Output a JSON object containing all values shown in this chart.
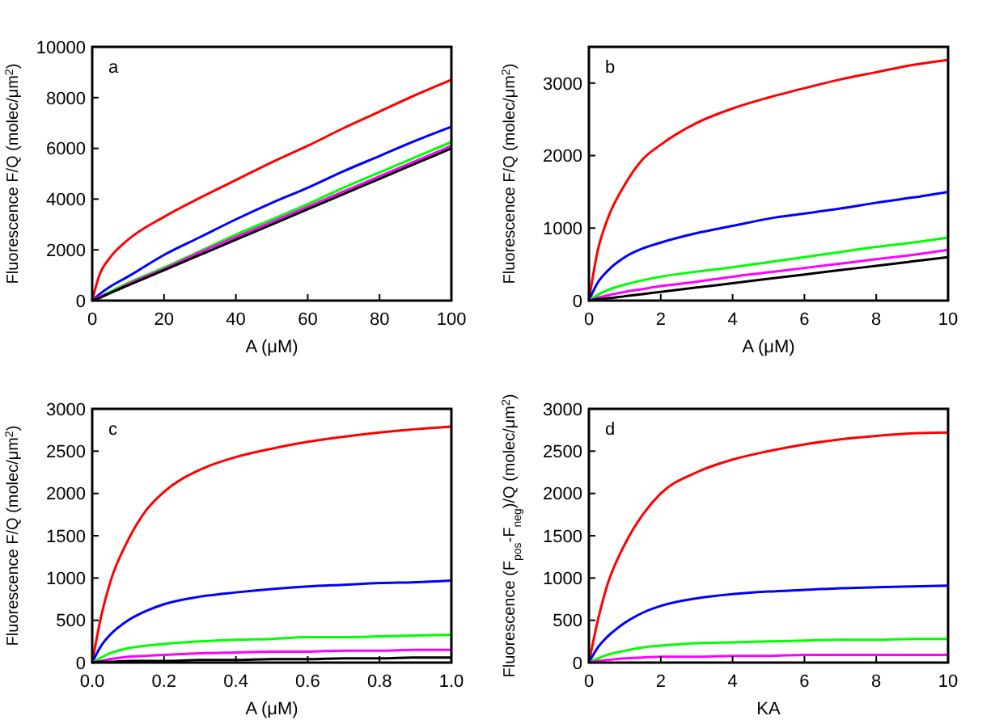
{
  "chart_data": [
    {
      "type": "line",
      "annotations": [
        "a"
      ],
      "xlabel": "A (μM)",
      "ylabel": "Fluorescence F/Q (molec/μm$^{2}$)",
      "x": [
        0,
        2,
        5,
        10,
        20,
        30,
        40,
        50,
        60,
        70,
        80,
        90,
        100
      ],
      "xlim": [
        0,
        100
      ],
      "xticks": [
        0,
        20,
        40,
        60,
        80,
        100
      ],
      "ylim": [
        0,
        10000
      ],
      "yticks": [
        0,
        2000,
        4000,
        6000,
        8000,
        10000
      ],
      "marker": "none",
      "series": [
        {
          "color": "#ff0000",
          "values": [
            0,
            1000,
            1700,
            2400,
            3300,
            4050,
            4750,
            5450,
            6100,
            6800,
            7450,
            8100,
            8700
          ]
        },
        {
          "color": "#0000ff",
          "values": [
            0,
            250,
            550,
            950,
            1800,
            2500,
            3200,
            3850,
            4450,
            5100,
            5700,
            6300,
            6850
          ]
        },
        {
          "color": "#00ff00",
          "values": [
            0,
            150,
            350,
            700,
            1300,
            1950,
            2600,
            3200,
            3800,
            4450,
            5050,
            5650,
            6250
          ]
        },
        {
          "color": "#ff00ff",
          "values": [
            0,
            150,
            300,
            650,
            1250,
            1900,
            2500,
            3100,
            3700,
            4300,
            4900,
            5500,
            6100
          ]
        },
        {
          "color": "#000000",
          "values": [
            0,
            100,
            300,
            600,
            1200,
            1800,
            2400,
            3000,
            3600,
            4200,
            4800,
            5400,
            6000
          ]
        }
      ]
    },
    {
      "type": "line",
      "annotations": [
        "b"
      ],
      "xlabel": "A (μM)",
      "ylabel": "Fluorescence F/Q (molec/μm$^{2}$)",
      "x": [
        0,
        0.25,
        0.5,
        1,
        1.5,
        2,
        3,
        4,
        5,
        6,
        7,
        8,
        9,
        10
      ],
      "xlim": [
        0,
        10
      ],
      "xticks": [
        0,
        2,
        4,
        6,
        8,
        10
      ],
      "ylim": [
        0,
        3500
      ],
      "yticks": [
        0,
        1000,
        2000,
        3000
      ],
      "marker": "none",
      "series": [
        {
          "color": "#ff0000",
          "values": [
            0,
            700,
            1100,
            1600,
            1950,
            2150,
            2450,
            2650,
            2800,
            2930,
            3050,
            3150,
            3250,
            3320
          ]
        },
        {
          "color": "#0000ff",
          "values": [
            0,
            250,
            400,
            600,
            720,
            800,
            930,
            1030,
            1130,
            1200,
            1270,
            1350,
            1420,
            1500
          ]
        },
        {
          "color": "#00ff00",
          "values": [
            0,
            80,
            140,
            220,
            280,
            330,
            400,
            460,
            530,
            600,
            670,
            740,
            800,
            870
          ]
        },
        {
          "color": "#ff00ff",
          "values": [
            0,
            40,
            70,
            120,
            160,
            200,
            260,
            330,
            390,
            450,
            510,
            570,
            630,
            700
          ]
        },
        {
          "color": "#000000",
          "values": [
            0,
            20,
            30,
            60,
            90,
            120,
            180,
            240,
            300,
            360,
            420,
            480,
            540,
            600
          ]
        }
      ]
    },
    {
      "type": "line",
      "annotations": [
        "c"
      ],
      "xlabel": "A (μM)",
      "ylabel": "Fluorescence F/Q (molec/μm$^{2}$)",
      "x": [
        0,
        0.025,
        0.05,
        0.1,
        0.15,
        0.2,
        0.3,
        0.4,
        0.5,
        0.6,
        0.7,
        0.8,
        0.9,
        1.0
      ],
      "xlim": [
        0,
        1
      ],
      "xticks": [
        {
          "value": 0,
          "label": "0.0"
        },
        0.2,
        0.4,
        0.6,
        0.8,
        {
          "value": 1,
          "label": "1.0"
        }
      ],
      "ylim": [
        0,
        3000
      ],
      "yticks": [
        0,
        500,
        1000,
        1500,
        2000,
        2500,
        3000
      ],
      "marker": "none",
      "series": [
        {
          "color": "#ff0000",
          "values": [
            0,
            550,
            950,
            1450,
            1800,
            2020,
            2280,
            2430,
            2530,
            2610,
            2670,
            2720,
            2760,
            2790
          ]
        },
        {
          "color": "#0000ff",
          "values": [
            0,
            200,
            330,
            500,
            610,
            690,
            780,
            830,
            870,
            900,
            920,
            940,
            950,
            970
          ]
        },
        {
          "color": "#00ff00",
          "values": [
            0,
            60,
            110,
            170,
            200,
            220,
            250,
            270,
            280,
            300,
            300,
            310,
            320,
            330
          ]
        },
        {
          "color": "#ff00ff",
          "values": [
            0,
            20,
            40,
            70,
            80,
            90,
            110,
            120,
            130,
            130,
            140,
            140,
            150,
            150
          ]
        },
        {
          "color": "#000000",
          "values": [
            0,
            10,
            10,
            20,
            20,
            20,
            30,
            30,
            40,
            40,
            50,
            50,
            60,
            60
          ]
        }
      ]
    },
    {
      "type": "line",
      "annotations": [
        "d"
      ],
      "xlabel": "KA",
      "ylabel": "Fluorescence (F$_{pos}$-F$_{neg}$)/Q (molec/μm$^{2}$)",
      "x": [
        0,
        0.25,
        0.5,
        1,
        1.5,
        2,
        3,
        4,
        5,
        6,
        7,
        8,
        9,
        10
      ],
      "xlim": [
        0,
        10
      ],
      "xticks": [
        0,
        2,
        4,
        6,
        8,
        10
      ],
      "ylim": [
        0,
        3000
      ],
      "yticks": [
        0,
        500,
        1000,
        1500,
        2000,
        2500,
        3000
      ],
      "marker": "none",
      "series": [
        {
          "color": "#ff0000",
          "values": [
            0,
            500,
            900,
            1400,
            1750,
            2000,
            2250,
            2400,
            2500,
            2580,
            2640,
            2680,
            2710,
            2720
          ]
        },
        {
          "color": "#0000ff",
          "values": [
            0,
            180,
            300,
            470,
            590,
            670,
            760,
            810,
            840,
            860,
            880,
            890,
            900,
            910
          ]
        },
        {
          "color": "#00ff00",
          "values": [
            0,
            50,
            90,
            140,
            180,
            200,
            230,
            240,
            250,
            260,
            270,
            270,
            280,
            280
          ]
        },
        {
          "color": "#ff00ff",
          "values": [
            0,
            20,
            30,
            50,
            60,
            70,
            70,
            80,
            80,
            90,
            90,
            90,
            90,
            90
          ]
        }
      ]
    }
  ]
}
